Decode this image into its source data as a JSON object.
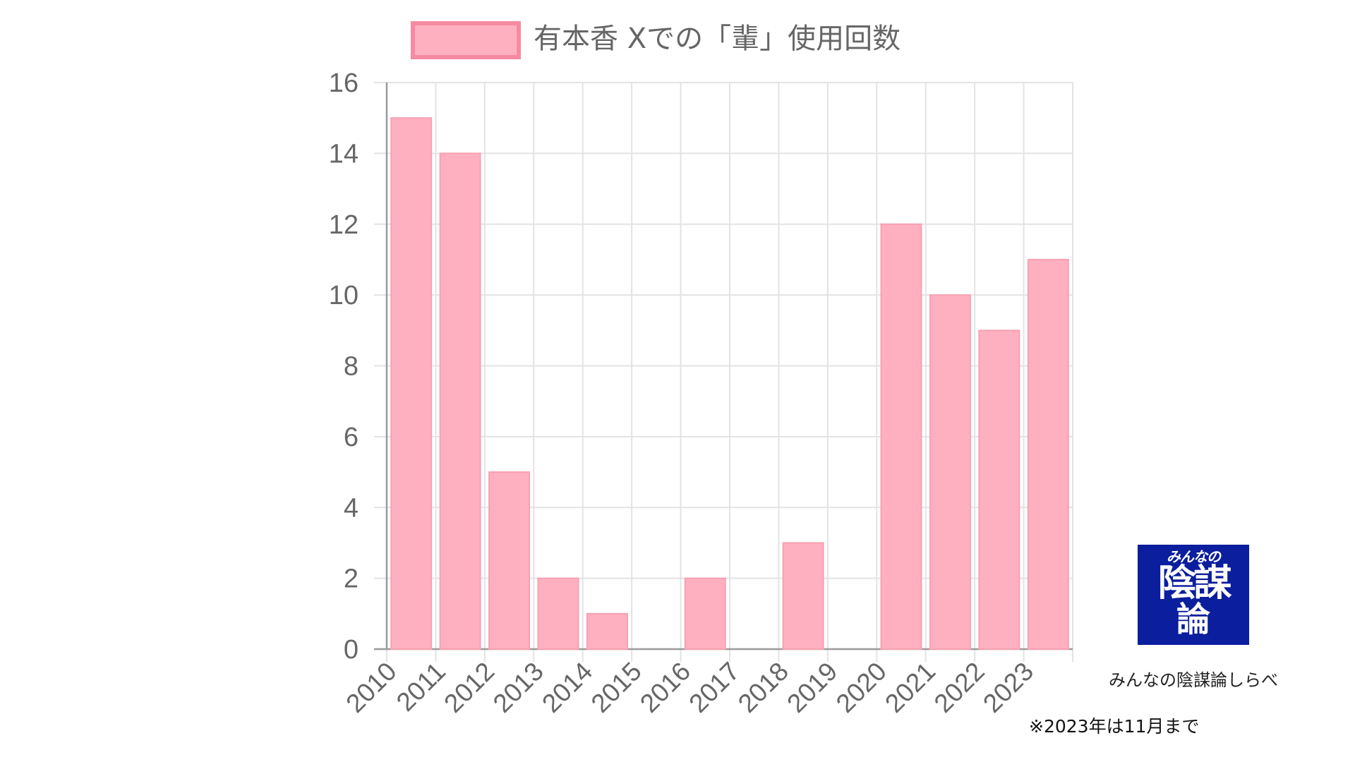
{
  "chart_data": {
    "type": "bar",
    "title": "",
    "xlabel": "",
    "ylabel": "",
    "categories": [
      "2010",
      "2011",
      "2012",
      "2013",
      "2014",
      "2015",
      "2016",
      "2017",
      "2018",
      "2019",
      "2020",
      "2021",
      "2022",
      "2023"
    ],
    "series": [
      {
        "name": "有本香 Xでの「輩」使用回数",
        "values": [
          15,
          14,
          5,
          2,
          1,
          0,
          2,
          0,
          3,
          0,
          12,
          10,
          9,
          11
        ]
      }
    ],
    "ylim": [
      0,
      16
    ],
    "yticks": [
      "0",
      "2",
      "4",
      "6",
      "8",
      "10",
      "12",
      "14",
      "16"
    ],
    "grid": true,
    "legend_position": "top",
    "bar_fill": "#ffb0c0",
    "bar_border": "#f7a0b2",
    "legend_border": "#f58aa0",
    "grid_color": "#e3e3e3",
    "axis_color": "#9a9a9a",
    "tick_color": "#666666"
  },
  "logo": {
    "line1": "みんなの",
    "line2": "陰謀",
    "line3": "論",
    "background": "#0b1e9e"
  },
  "logo_caption": "みんなの陰謀論しらべ",
  "footnote": "※2023年は11月まで"
}
